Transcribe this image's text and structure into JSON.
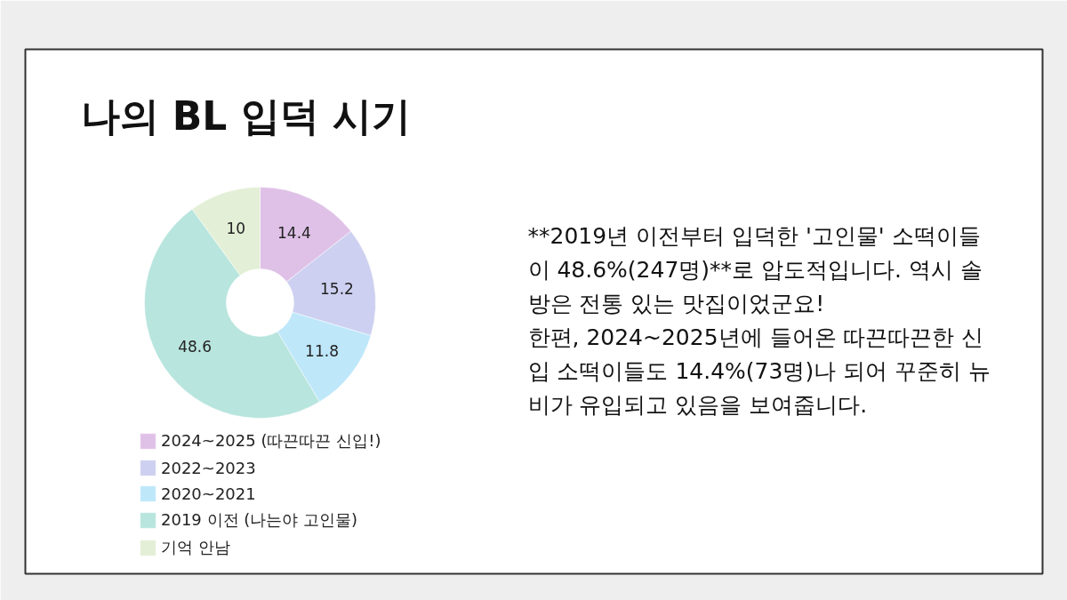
{
  "chart_data": {
    "type": "donut",
    "title": "나의 BL 입덕 시기",
    "categories": [
      "2024~2025 (따끈따끈 신입!)",
      "2022~2023",
      "2020~2021",
      "2019 이전 (나는야 고인물)",
      "기억 안남"
    ],
    "values": [
      14.4,
      15.2,
      11.8,
      48.6,
      10
    ],
    "colors": [
      "#dfc1e7",
      "#cdd0f0",
      "#bee7fa",
      "#b8e5de",
      "#e3efd6"
    ],
    "data_labels": true,
    "legend": "bottom",
    "annotations": [
      "**2019년 이전부터 입덕한 '고인물' 소떡이들이 48.6%(247명)**로 압도적입니다. 역시 솔방은 전통 있는 맛집이었군요!",
      "한편, 2024~2025년에 들어온 따끈따끈한 신입 소떡이들도 14.4%(73명)나 되어 꾸준히 뉴비가 유입되고 있음을 보여줍니다."
    ]
  }
}
